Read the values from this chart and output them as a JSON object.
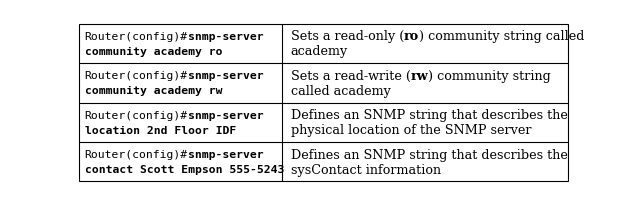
{
  "rows": [
    {
      "left_line1_normal": "Router(config)#",
      "left_line1_bold": "snmp-server",
      "left_line2": "community academy ro",
      "right_segments": [
        {
          "text": "Sets a read-only (",
          "bold": false
        },
        {
          "text": "ro",
          "bold": true
        },
        {
          "text": ") community string called",
          "bold": false
        }
      ],
      "right_line2": "academy"
    },
    {
      "left_line1_normal": "Router(config)#",
      "left_line1_bold": "snmp-server",
      "left_line2": "community academy rw",
      "right_segments": [
        {
          "text": "Sets a read-write (",
          "bold": false
        },
        {
          "text": "rw",
          "bold": true
        },
        {
          "text": ") community string",
          "bold": false
        }
      ],
      "right_line2": "called academy"
    },
    {
      "left_line1_normal": "Router(config)#",
      "left_line1_bold": "snmp-server",
      "left_line2": "location 2nd Floor IDF",
      "right_segments": [
        {
          "text": "Defines an SNMP string that describes the",
          "bold": false
        }
      ],
      "right_line2": "physical location of the SNMP server"
    },
    {
      "left_line1_normal": "Router(config)#",
      "left_line1_bold": "snmp-server",
      "left_line2": "contact Scott Empson 555-5243",
      "right_segments": [
        {
          "text": "Defines an SNMP string that describes the",
          "bold": false
        }
      ],
      "right_line2": "sysContact information"
    }
  ],
  "col_split": 0.415,
  "bg_color": "#ffffff",
  "border_color": "#000000",
  "text_color": "#000000",
  "mono_fontsize": 8.2,
  "serif_fontsize": 9.2
}
